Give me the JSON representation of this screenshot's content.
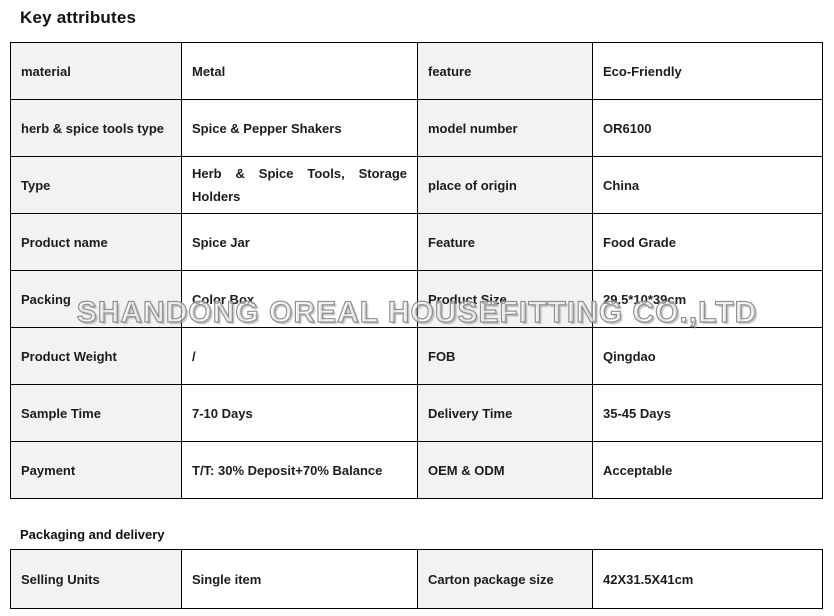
{
  "page": {
    "key_attributes_title": "Key attributes",
    "packaging_title": "Packaging and delivery",
    "watermark": "SHANDONG OREAL HOUSEFITTING CO.,LTD"
  },
  "colors": {
    "label_cell_bg": "#f2f2f2",
    "value_cell_bg": "#ffffff",
    "border": "#000000",
    "text": "#1c1c1c",
    "watermark_outline": "#8f8f8f"
  },
  "key_attributes_rows": [
    {
      "label1": "material",
      "value1": "Metal",
      "label2": "feature",
      "value2": "Eco-Friendly"
    },
    {
      "label1": "herb & spice tools type",
      "value1": "Spice & Pepper Shakers",
      "label2": "model number",
      "value2": "OR6100"
    },
    {
      "label1": "Type",
      "value1": "Herb & Spice Tools, Storage Holders",
      "label2": "place of origin",
      "value2": "China"
    },
    {
      "label1": "Product name",
      "value1": "Spice Jar",
      "label2": "Feature",
      "value2": "Food Grade"
    },
    {
      "label1": "Packing",
      "value1": "Color Box",
      "label2": "Product Size",
      "value2": "29.5*10*39cm"
    },
    {
      "label1": "Product Weight",
      "value1": "/",
      "label2": "FOB",
      "value2": "Qingdao"
    },
    {
      "label1": "Sample Time",
      "value1": "7-10 Days",
      "label2": "Delivery Time",
      "value2": "35-45 Days"
    },
    {
      "label1": "Payment",
      "value1": "T/T: 30% Deposit+70% Balance",
      "label2": "OEM & ODM",
      "value2": "Acceptable"
    }
  ],
  "packaging_rows": [
    {
      "label1": "Selling Units",
      "value1": "Single item",
      "label2": "Carton package size",
      "value2": "42X31.5X41cm"
    }
  ]
}
